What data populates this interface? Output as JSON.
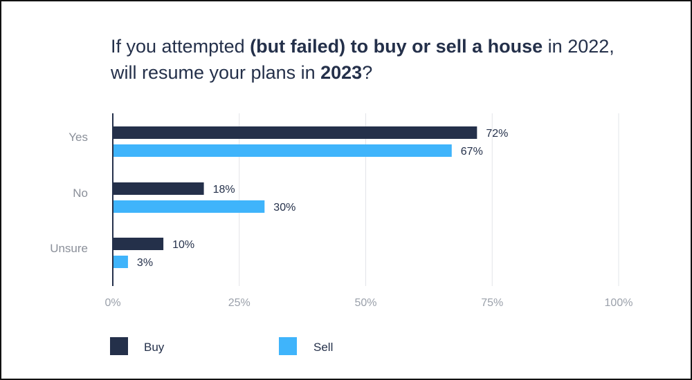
{
  "title": {
    "p1": "If you attempted ",
    "p2": "(but failed) to buy or sell a house",
    "p3": " in 2022,",
    "p4": "will resume your plans in ",
    "p5": "2023",
    "p6": "?"
  },
  "chart_data": {
    "type": "bar",
    "orientation": "horizontal",
    "title": "If you attempted (but failed) to buy or sell a house in 2022, will resume your plans in 2023?",
    "categories": [
      "Yes",
      "No",
      "Unsure"
    ],
    "series": [
      {
        "name": "Buy",
        "values": [
          72,
          18,
          10
        ],
        "labels": [
          "72%",
          "18%",
          "10%"
        ],
        "color": "#24304a"
      },
      {
        "name": "Sell",
        "values": [
          67,
          30,
          3
        ],
        "labels": [
          "67%",
          "30%",
          "3%"
        ],
        "color": "#3fb4fb"
      }
    ],
    "xlim": [
      0,
      100
    ],
    "xticks": [
      0,
      25,
      50,
      75,
      100
    ],
    "xtick_labels": [
      "0%",
      "25%",
      "50%",
      "75%",
      "100%"
    ],
    "grid": true,
    "legend_position": "bottom-left",
    "axis_color": "#24304a",
    "grid_color": "#e2e4e8"
  }
}
